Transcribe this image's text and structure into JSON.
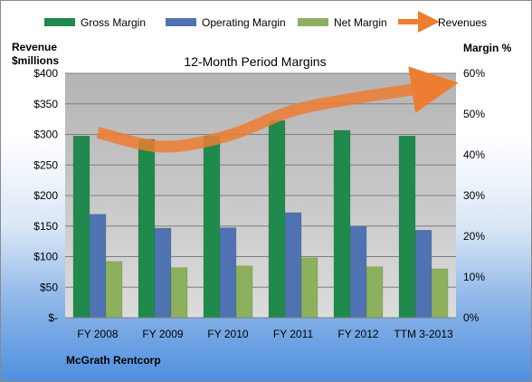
{
  "chart_data": {
    "type": "bar",
    "title": "12-Month Period Margins",
    "left_axis_label": [
      "Revenue",
      "$millions"
    ],
    "right_axis_label": "Margin %",
    "categories": [
      "FY 2008",
      "FY 2009",
      "FY 2010",
      "FY 2011",
      "FY 2012",
      "TTM 3-2013"
    ],
    "y_left": {
      "min": 0,
      "max": 400,
      "step": 50,
      "ticks": [
        "$-",
        "$50",
        "$100",
        "$150",
        "$200",
        "$250",
        "$300",
        "$350",
        "$400"
      ]
    },
    "y_right": {
      "min": 0,
      "max": 60,
      "step": 10,
      "ticks": [
        "0%",
        "10%",
        "20%",
        "30%",
        "40%",
        "50%",
        "60%"
      ]
    },
    "series": [
      {
        "name": "Gross Margin",
        "axis": "right",
        "color": "#1f8a4c",
        "values": [
          44.6,
          43.8,
          44.6,
          48.4,
          46.0,
          44.6
        ]
      },
      {
        "name": "Operating Margin",
        "axis": "right",
        "color": "#4f73b2",
        "values": [
          25.4,
          22.0,
          22.1,
          25.8,
          22.4,
          21.5
        ]
      },
      {
        "name": "Net Margin",
        "axis": "right",
        "color": "#8db05c",
        "values": [
          13.8,
          12.3,
          12.7,
          14.7,
          12.5,
          12.0
        ]
      },
      {
        "name": "Revenues",
        "axis": "left",
        "color": "#ed7d31",
        "type": "line",
        "values": [
          303,
          280,
          298,
          339,
          360,
          376
        ]
      }
    ],
    "legend_position": "top",
    "grid": true
  },
  "company": "McGrath Rentcorp"
}
